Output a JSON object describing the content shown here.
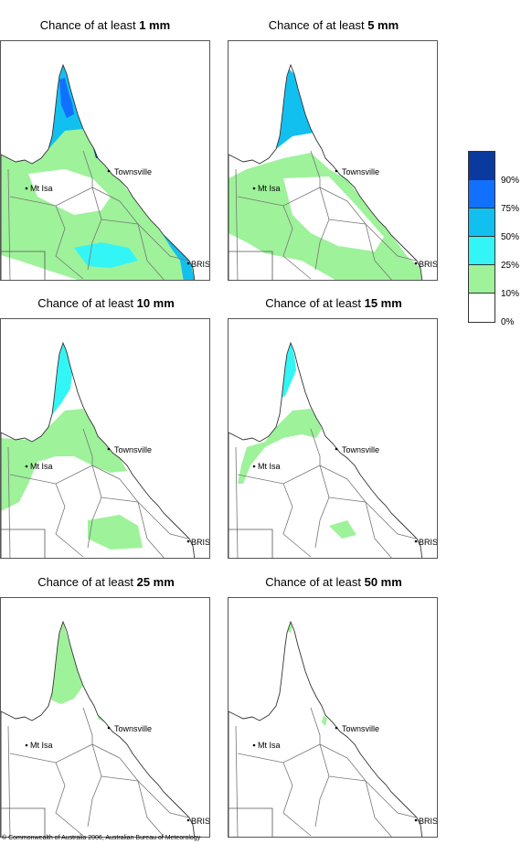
{
  "legend": {
    "colors": [
      "#0a3a9e",
      "#1270ff",
      "#12c0f0",
      "#34f5f5",
      "#9ef29a",
      "#ffffff"
    ],
    "labels": [
      "90%",
      "75%",
      "50%",
      "25%",
      "10%",
      "0%"
    ]
  },
  "cities": {
    "townsville": "Townsville",
    "mt_isa": "Mt Isa",
    "bris": "BRIS"
  },
  "panels": [
    {
      "prefix": "Chance of at least",
      "value": "1 mm",
      "level": 0
    },
    {
      "prefix": "Chance of at least",
      "value": "5 mm",
      "level": 1
    },
    {
      "prefix": "Chance of at least",
      "value": "10 mm",
      "level": 2
    },
    {
      "prefix": "Chance of at least",
      "value": "15 mm",
      "level": 3
    },
    {
      "prefix": "Chance of at least",
      "value": "25 mm",
      "level": 4
    },
    {
      "prefix": "Chance of at least",
      "value": "50 mm",
      "level": 5
    }
  ],
  "footer": "© Commonwealth of Australia 2006, Australian Bureau of Meteorology"
}
